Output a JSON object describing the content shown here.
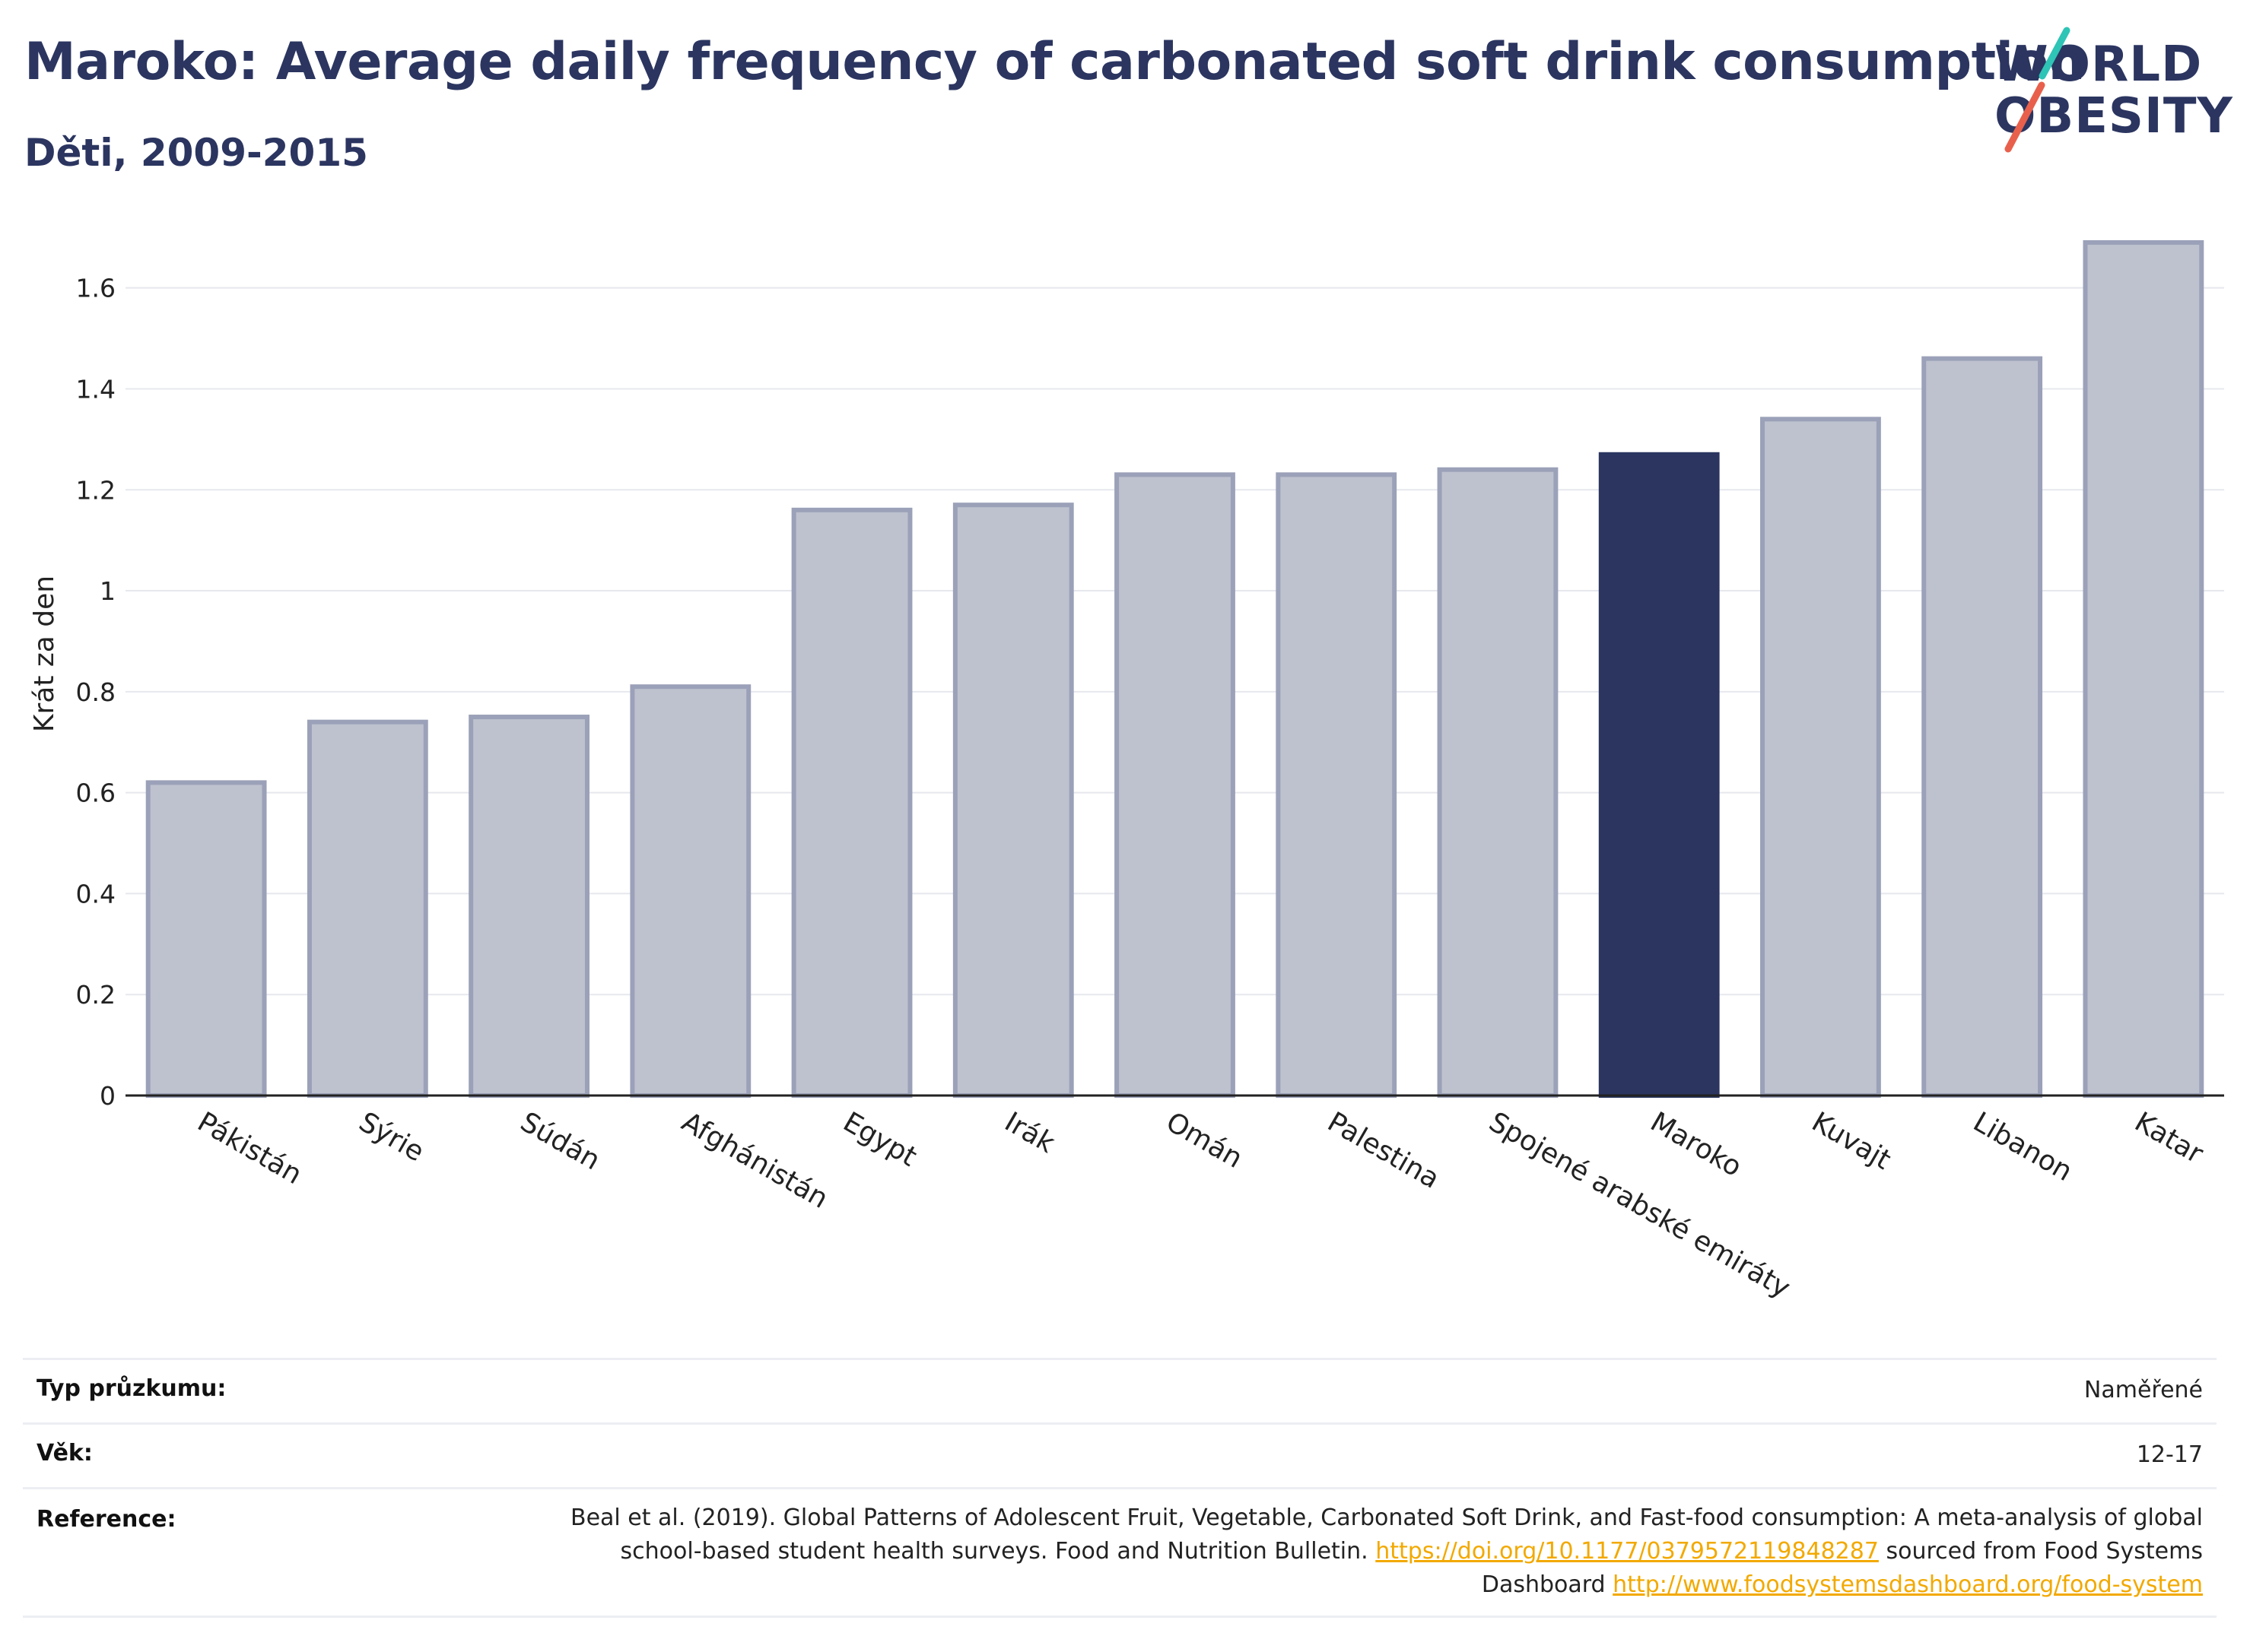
{
  "header": {
    "title": "Maroko: Average daily frequency of carbonated soft drink consumption",
    "subtitle": "Děti, 2009-2015"
  },
  "logo": {
    "line1": "WORLD",
    "line2": "OBESITY",
    "stripe_colors": [
      "#2ec4b6",
      "#e8604c"
    ]
  },
  "colors": {
    "bar": "#bec2cf",
    "bar_edge": "#9ba1b8",
    "highlight": "#2b3560"
  },
  "chart_data": {
    "type": "bar",
    "title": "Maroko: Average daily frequency of carbonated soft drink consumption",
    "subtitle": "Děti, 2009-2015",
    "xlabel": "",
    "ylabel": "Krát za den",
    "ylim": [
      0,
      1.72
    ],
    "yticks": [
      0,
      0.2,
      0.4,
      0.6,
      0.8,
      1,
      1.2,
      1.4,
      1.6
    ],
    "ytick_labels": [
      "0",
      "0.2",
      "0.4",
      "0.6",
      "0.8",
      "1",
      "1.2",
      "1.4",
      "1.6"
    ],
    "categories": [
      "Pákistán",
      "Sýrie",
      "Súdán",
      "Afghánistán",
      "Egypt",
      "Irák",
      "Omán",
      "Palestina",
      "Spojené arabské emiráty",
      "Maroko",
      "Kuvajt",
      "Libanon",
      "Katar"
    ],
    "values": [
      0.62,
      0.74,
      0.75,
      0.81,
      1.16,
      1.17,
      1.23,
      1.23,
      1.24,
      1.27,
      1.34,
      1.46,
      1.69
    ],
    "highlight": "Maroko",
    "grid": true,
    "legend": "none"
  },
  "info_table": [
    {
      "label": "Typ průzkumu:",
      "value": "Naměřené"
    },
    {
      "label": "Věk:",
      "value": "12-17"
    }
  ],
  "reference": {
    "label": "Reference:",
    "text1": "Beal et al. (2019). Global Patterns of Adolescent Fruit, Vegetable, Carbonated Soft Drink, and Fast-food consumption: A meta-analysis of global school-based student health surveys. Food and Nutrition Bulletin.",
    "link1": "https://doi.org/10.1177/0379572119848287",
    "text2": "sourced from Food Systems Dashboard",
    "link2": "http://www.foodsystemsdashboard.org/food-system"
  }
}
